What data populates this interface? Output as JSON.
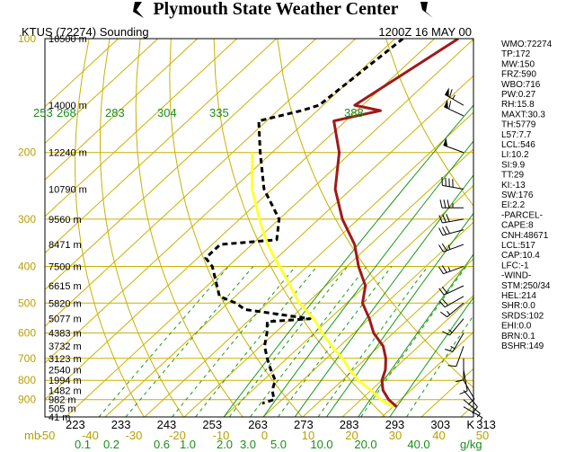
{
  "title": "Plymouth State Weather Center",
  "header": {
    "station": "KTUS (72274) Sounding",
    "time": "1200Z 16 MAY 00"
  },
  "chart_data": {
    "type": "line",
    "title": "KTUS (72274) Sounding",
    "diagram": "skew-T log-p",
    "xlabel": "mb",
    "ylabel": "",
    "ylim": [
      100,
      1000
    ],
    "pressure_labels": [
      {
        "p": 100,
        "label": "100"
      },
      {
        "p": 200,
        "label": "200"
      },
      {
        "p": 300,
        "label": "300"
      },
      {
        "p": 400,
        "label": "400"
      },
      {
        "p": 500,
        "label": "500"
      },
      {
        "p": 600,
        "label": "600"
      },
      {
        "p": 700,
        "label": "700"
      },
      {
        "p": 800,
        "label": "800"
      },
      {
        "p": 900,
        "label": "900"
      },
      {
        "p": 1000,
        "label": ""
      }
    ],
    "height_labels": [
      {
        "p": 100,
        "label": "16500 m"
      },
      {
        "p": 150,
        "label": "14000 m"
      },
      {
        "p": 200,
        "label": "12240 m"
      },
      {
        "p": 250,
        "label": "10790 m"
      },
      {
        "p": 300,
        "label": "9560 m"
      },
      {
        "p": 350,
        "label": "8471 m"
      },
      {
        "p": 400,
        "label": "7500 m"
      },
      {
        "p": 450,
        "label": "6615 m"
      },
      {
        "p": 500,
        "label": "5820 m"
      },
      {
        "p": 550,
        "label": "5077 m"
      },
      {
        "p": 600,
        "label": "4383 m"
      },
      {
        "p": 650,
        "label": "3732 m"
      },
      {
        "p": 700,
        "label": "3123 m"
      },
      {
        "p": 750,
        "label": "2540 m"
      },
      {
        "p": 800,
        "label": "1994 m"
      },
      {
        "p": 850,
        "label": "1482 m"
      },
      {
        "p": 900,
        "label": "982 m"
      },
      {
        "p": 950,
        "label": "505 m"
      },
      {
        "p": 1000,
        "label": "41 m"
      }
    ],
    "temperature_ticks": [
      "-50",
      "-40",
      "-30",
      "-20",
      "-10",
      "0",
      "10",
      "20",
      "30",
      "40",
      "50"
    ],
    "kelvin_ticks": [
      "223",
      "233",
      "243",
      "253",
      "263",
      "273",
      "283",
      "293",
      "303",
      "313"
    ],
    "kelvin_unit": "K",
    "mixing_ratio_ticks": [
      "0.1",
      "0.2",
      "0.6",
      "1.0",
      "2.0",
      "3.0",
      "5.0",
      "10.0",
      "20.0",
      "40.0"
    ],
    "mixing_ratio_unit": "g/kg",
    "theta_labels": [
      "253",
      "268",
      "283",
      "304",
      "335",
      "388"
    ],
    "series": [
      {
        "name": "temperature",
        "color": "#9e1a1a",
        "style": "solid",
        "points": [
          [
            100,
            -54
          ],
          [
            150,
            -62
          ],
          [
            155,
            -54
          ],
          [
            165,
            -63
          ],
          [
            200,
            -53
          ],
          [
            250,
            -44
          ],
          [
            300,
            -34
          ],
          [
            350,
            -24
          ],
          [
            400,
            -17
          ],
          [
            450,
            -10
          ],
          [
            500,
            -6
          ],
          [
            550,
            0
          ],
          [
            600,
            5
          ],
          [
            650,
            11
          ],
          [
            700,
            15
          ],
          [
            750,
            18
          ],
          [
            800,
            20
          ],
          [
            850,
            23
          ],
          [
            900,
            27
          ],
          [
            940,
            31
          ]
        ]
      },
      {
        "name": "dewpoint",
        "color": "#000000",
        "style": "dashed",
        "points": [
          [
            100,
            -68
          ],
          [
            150,
            -71
          ],
          [
            155,
            -74
          ],
          [
            165,
            -82
          ],
          [
            200,
            -73
          ],
          [
            250,
            -62
          ],
          [
            300,
            -50
          ],
          [
            340,
            -45
          ],
          [
            350,
            -58
          ],
          [
            380,
            -58
          ],
          [
            400,
            -54
          ],
          [
            480,
            -44
          ],
          [
            500,
            -38
          ],
          [
            520,
            -34
          ],
          [
            550,
            -15
          ],
          [
            560,
            -25
          ],
          [
            600,
            -22
          ],
          [
            650,
            -19
          ],
          [
            700,
            -15
          ],
          [
            750,
            -11
          ],
          [
            800,
            -7
          ],
          [
            850,
            -5
          ],
          [
            900,
            -2
          ],
          [
            920,
            -4
          ]
        ]
      },
      {
        "name": "parcel",
        "color": "#ffff33",
        "style": "solid",
        "points": [
          [
            200,
            -75
          ],
          [
            250,
            -65
          ],
          [
            300,
            -55
          ],
          [
            350,
            -46
          ],
          [
            400,
            -37
          ],
          [
            450,
            -29
          ],
          [
            500,
            -22
          ],
          [
            550,
            -14
          ],
          [
            600,
            -8
          ],
          [
            650,
            -2
          ],
          [
            700,
            4
          ],
          [
            750,
            9
          ],
          [
            800,
            14
          ],
          [
            850,
            20
          ],
          [
            900,
            25
          ],
          [
            940,
            30
          ]
        ]
      }
    ],
    "wind_barbs": [
      {
        "p": 150,
        "dir": 300,
        "kt": 65
      },
      {
        "p": 160,
        "dir": 295,
        "kt": 60
      },
      {
        "p": 200,
        "dir": 290,
        "kt": 50
      },
      {
        "p": 250,
        "dir": 280,
        "kt": 40
      },
      {
        "p": 280,
        "dir": 270,
        "kt": 35
      },
      {
        "p": 300,
        "dir": 260,
        "kt": 30
      },
      {
        "p": 320,
        "dir": 255,
        "kt": 30
      },
      {
        "p": 350,
        "dir": 250,
        "kt": 25
      },
      {
        "p": 400,
        "dir": 250,
        "kt": 25
      },
      {
        "p": 450,
        "dir": 245,
        "kt": 20
      },
      {
        "p": 480,
        "dir": 240,
        "kt": 20
      },
      {
        "p": 500,
        "dir": 230,
        "kt": 15
      },
      {
        "p": 550,
        "dir": 220,
        "kt": 15
      },
      {
        "p": 600,
        "dir": 210,
        "kt": 15
      },
      {
        "p": 650,
        "dir": 200,
        "kt": 10
      },
      {
        "p": 700,
        "dir": 180,
        "kt": 10
      },
      {
        "p": 750,
        "dir": 170,
        "kt": 10
      },
      {
        "p": 800,
        "dir": 150,
        "kt": 10
      },
      {
        "p": 850,
        "dir": 140,
        "kt": 10
      },
      {
        "p": 900,
        "dir": 130,
        "kt": 5
      },
      {
        "p": 940,
        "dir": 120,
        "kt": 5
      }
    ]
  },
  "indices": [
    "WMO:72274",
    "TP:172",
    "MW:150",
    "FRZ:590",
    "WBO:716",
    "PW:0.27",
    "RH:15.8",
    "MAXT:30.3",
    "TH:5779",
    "L57:7.7",
    "LCL:546",
    "LI:10.2",
    "SI:9.9",
    "TT:29",
    "KI:-13",
    "SW:176",
    "EI:2.2",
    "-PARCEL-",
    "CAPE:8",
    "CNH:48671",
    "LCL:517",
    "CAP:10.4",
    "LFC:-1",
    "-WIND-",
    "STM:250/34",
    "HEL:214",
    "SHR:0.0",
    "SRDS:102",
    "EHI:0.0",
    "BRN:0.1",
    "BSHR:149"
  ]
}
